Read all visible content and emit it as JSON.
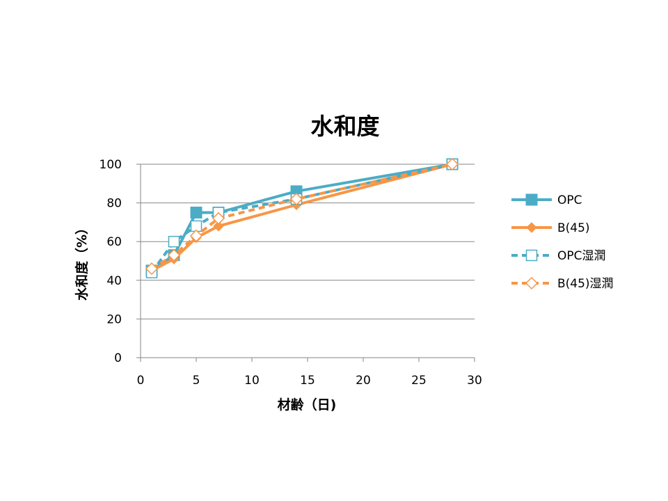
{
  "chart_data": {
    "type": "line",
    "title": "水和度",
    "xlabel": "材齢（日)",
    "ylabel": "水和度（%）",
    "xlim": [
      0,
      30
    ],
    "ylim": [
      0,
      100
    ],
    "xticks": [
      0,
      5,
      10,
      15,
      20,
      25,
      30
    ],
    "yticks": [
      0,
      20,
      40,
      60,
      80,
      100
    ],
    "grid": "horizontal",
    "legend_position": "right",
    "series": [
      {
        "name": "OPC",
        "color": "#4BACC6",
        "dash": false,
        "marker": "square-filled",
        "x": [
          1,
          3,
          5,
          7,
          14,
          28
        ],
        "y": [
          45,
          53,
          75,
          75,
          86,
          100
        ]
      },
      {
        "name": "B(45)",
        "color": "#F79646",
        "dash": false,
        "marker": "diamond-filled",
        "x": [
          1,
          3,
          5,
          7,
          14,
          28
        ],
        "y": [
          45,
          51,
          62,
          68,
          79,
          100
        ]
      },
      {
        "name": "OPC湿潤",
        "color": "#4BACC6",
        "dash": true,
        "marker": "square-open",
        "x": [
          1,
          3,
          5,
          7,
          14,
          28
        ],
        "y": [
          44,
          60,
          68,
          75,
          82,
          100
        ]
      },
      {
        "name": "B(45)湿潤",
        "color": "#F79646",
        "dash": true,
        "marker": "diamond-open",
        "x": [
          1,
          3,
          5,
          7,
          14,
          28
        ],
        "y": [
          46,
          53,
          63,
          72,
          82,
          100
        ]
      }
    ]
  }
}
